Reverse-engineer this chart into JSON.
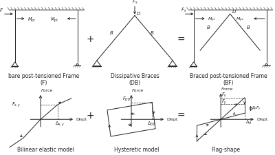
{
  "bg_color": "#ffffff",
  "line_color": "#222222",
  "lw": 0.7,
  "fs_anno": 5.0,
  "fs_label": 5.5,
  "frame_labels": [
    "bare post-tensioned Frame\n(F)",
    "Dissipative Braces\n(DB)",
    "Braced post-tensioned Frame\n(BF)"
  ],
  "hysteresis_labels": [
    "Bilinear elastic model",
    "Hysteretic model",
    "Flag-shape"
  ]
}
